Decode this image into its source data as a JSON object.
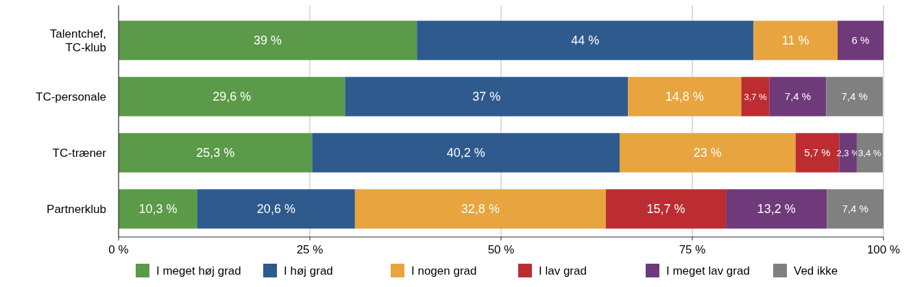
{
  "chart_data": {
    "type": "bar",
    "orientation": "horizontal",
    "stacked": true,
    "categories": [
      "Talentchef,\nTC-klub",
      "TC-personale",
      "TC-træner",
      "Partnerklub"
    ],
    "series": [
      {
        "name": "I meget høj grad",
        "color": "#5b9a48",
        "values": [
          39,
          29.6,
          25.3,
          10.3
        ],
        "value_labels": [
          "39 %",
          "29,6 %",
          "25,3 %",
          "10,3 %"
        ]
      },
      {
        "name": "I høj grad",
        "color": "#2e5a8e",
        "values": [
          44,
          37,
          40.2,
          20.6
        ],
        "value_labels": [
          "44 %",
          "37 %",
          "40,2 %",
          "20,6 %"
        ]
      },
      {
        "name": "I nogen grad",
        "color": "#e8a43e",
        "values": [
          11,
          14.8,
          23,
          32.8
        ],
        "value_labels": [
          "11 %",
          "14,8 %",
          "23 %",
          "32,8 %"
        ]
      },
      {
        "name": "I lav grad",
        "color": "#bd2c31",
        "values": [
          null,
          3.7,
          5.7,
          15.7
        ],
        "value_labels": [
          null,
          "3,7 %",
          "5,7 %",
          "15,7 %"
        ]
      },
      {
        "name": "I meget lav grad",
        "color": "#6e3a7a",
        "values": [
          6,
          7.4,
          2.3,
          13.2
        ],
        "value_labels": [
          "6 %",
          "7,4 %",
          "2,3 %",
          "13,2 %"
        ]
      },
      {
        "name": "Ved ikke",
        "color": "#808080",
        "values": [
          null,
          7.4,
          3.4,
          7.4
        ],
        "value_labels": [
          null,
          "7,4 %",
          "3,4 %",
          "7,4 %"
        ]
      }
    ],
    "xlim": [
      0,
      100
    ],
    "xticks": [
      {
        "value": 0,
        "label": "0 %"
      },
      {
        "value": 25,
        "label": "25 %"
      },
      {
        "value": 50,
        "label": "50 %"
      },
      {
        "value": 75,
        "label": "75 %"
      },
      {
        "value": 100,
        "label": "100 %"
      }
    ],
    "grid": "x",
    "legend": "bottom"
  }
}
